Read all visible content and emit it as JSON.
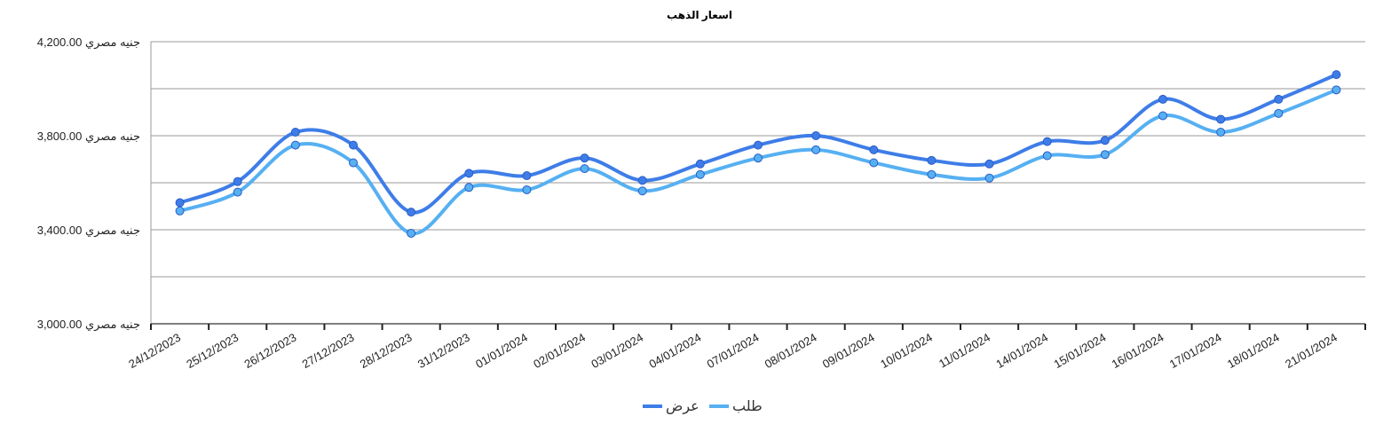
{
  "colors": {
    "offer": "#3e7de8",
    "bid": "#56b0f2",
    "grid": "#9a9a9a",
    "axis": "#555555"
  },
  "chart_data": {
    "type": "line",
    "title": "اسعار الذهب",
    "xlabel": "",
    "ylabel": "",
    "ylim": [
      3000,
      4200
    ],
    "yticks": [
      3000,
      3400,
      3800,
      4200
    ],
    "ytick_labels": [
      "3,000.00 جنيه مصري",
      "3,400.00 جنيه مصري",
      "3,800.00 جنيه مصري",
      "4,200.00 جنيه مصري"
    ],
    "grid": true,
    "legend_position": "bottom",
    "categories": [
      "24/12/2023",
      "25/12/2023",
      "26/12/2023",
      "27/12/2023",
      "28/12/2023",
      "31/12/2023",
      "01/01/2024",
      "02/01/2024",
      "03/01/2024",
      "04/01/2024",
      "07/01/2024",
      "08/01/2024",
      "09/01/2024",
      "10/01/2024",
      "11/01/2024",
      "14/01/2024",
      "15/01/2024",
      "16/01/2024",
      "17/01/2024",
      "18/01/2024",
      "21/01/2024"
    ],
    "series": [
      {
        "name": "عرض",
        "values": [
          3515,
          3605,
          3815,
          3760,
          3475,
          3640,
          3630,
          3705,
          3610,
          3680,
          3760,
          3800,
          3740,
          3695,
          3680,
          3775,
          3780,
          3955,
          3870,
          3955,
          4060
        ]
      },
      {
        "name": "طلب",
        "values": [
          3480,
          3560,
          3760,
          3685,
          3385,
          3580,
          3570,
          3660,
          3565,
          3635,
          3705,
          3740,
          3685,
          3635,
          3620,
          3715,
          3720,
          3885,
          3815,
          3895,
          3995
        ]
      }
    ]
  }
}
